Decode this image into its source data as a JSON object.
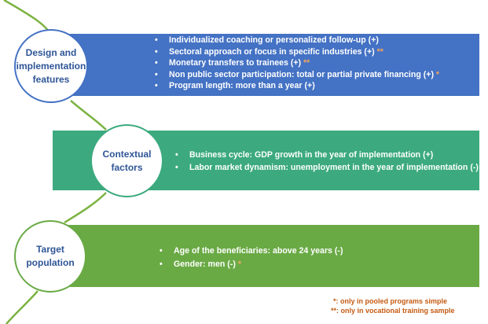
{
  "design": {
    "title": "Design and implementation features",
    "items": [
      {
        "text": "Individualized coaching or personalized follow-up (+)",
        "marker": ""
      },
      {
        "text": "Sectoral approach or focus in specific industries (+) ",
        "marker": "**"
      },
      {
        "text": "Monetary transfers to trainees (+) ",
        "marker": "**"
      },
      {
        "text": "Non public sector participation: total or partial private financing (+) ",
        "marker": "*"
      },
      {
        "text": "Program length: more than a year (+)",
        "marker": ""
      }
    ]
  },
  "context": {
    "title": "Contextual factors",
    "items": [
      {
        "text": "Business cycle: GDP growth in the year of implementation (+)"
      },
      {
        "text": "Labor market dynamism: unemployment in the year of implementation (-)"
      }
    ]
  },
  "target": {
    "title": "Target population",
    "items": [
      {
        "text": "Age of the beneficiaries: above 24 years (-)",
        "marker": ""
      },
      {
        "text": "Gender: men (-) ",
        "marker": "*"
      }
    ]
  },
  "notes": {
    "pooled": "*: only in pooled programs simple",
    "vocational": "**: only in vocational training sample"
  },
  "colors": {
    "design_band": "#4472c4",
    "context_band": "#3caa7e",
    "target_band": "#6aaa45",
    "circle_text": "#2f5597",
    "asterisk": "#f4a460",
    "note_text": "#c55a11",
    "connector": "#7cb342"
  }
}
